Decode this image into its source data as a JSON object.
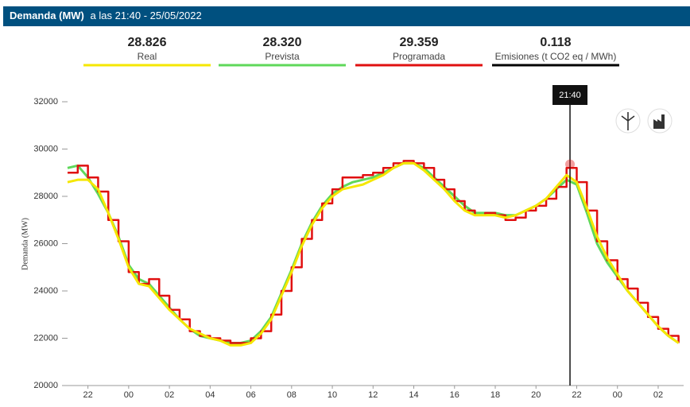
{
  "chart_data": {
    "type": "line",
    "title": "Demanda (MW)",
    "subtitle": "a las 21:40 - 25/05/2022",
    "y_label": "Demanda (MW)",
    "summary": [
      {
        "name": "Real",
        "value": 28826,
        "value_label": "28.826",
        "color": "#f5e700"
      },
      {
        "name": "Prevista",
        "value": 28320,
        "value_label": "28.320",
        "color": "#5fd85a"
      },
      {
        "name": "Programada",
        "value": 29359,
        "value_label": "29.359",
        "color": "#e01010"
      },
      {
        "name": "Emisiones (t CO2 eq / MWh)",
        "value": 0.118,
        "color": "#000000"
      }
    ],
    "cursor": {
      "label": "21:40",
      "x": 45.67
    },
    "x": [
      21,
      21.5,
      22,
      22.5,
      23,
      23.5,
      24,
      24.5,
      25,
      25.5,
      26,
      26.5,
      27,
      27.5,
      28,
      28.5,
      29,
      29.5,
      30,
      30.5,
      31,
      31.5,
      32,
      32.5,
      33,
      33.5,
      34,
      34.5,
      35,
      35.5,
      36,
      36.5,
      37,
      37.5,
      38,
      38.5,
      39,
      39.5,
      40,
      40.5,
      41,
      41.5,
      42,
      42.5,
      43,
      43.5,
      44,
      44.5,
      45,
      45.5,
      46,
      46.5,
      47,
      47.5,
      48,
      48.5,
      49,
      49.5,
      50,
      50.5,
      51
    ],
    "series": [
      {
        "name": "Prevista",
        "color": "#5fd85a",
        "values": [
          29200,
          29300,
          28800,
          28100,
          27300,
          26300,
          25100,
          24500,
          24300,
          23800,
          23300,
          22800,
          22400,
          22100,
          22000,
          21900,
          21800,
          21800,
          21900,
          22300,
          22900,
          23900,
          24900,
          26000,
          26900,
          27600,
          28100,
          28400,
          28600,
          28700,
          28800,
          29000,
          29200,
          29400,
          29400,
          29200,
          28800,
          28400,
          28000,
          27600,
          27300,
          27300,
          27300,
          27200,
          27200,
          27400,
          27600,
          27900,
          28300,
          28700,
          28500,
          27300,
          26000,
          25200,
          24600,
          24000,
          23500,
          23000,
          22500,
          22100,
          21800
        ]
      },
      {
        "name": "Programada",
        "color": "#e01010",
        "step": true,
        "values": [
          29000,
          29300,
          28800,
          28200,
          27000,
          26100,
          24800,
          24300,
          24500,
          23800,
          23200,
          22800,
          22300,
          22100,
          22000,
          21900,
          21800,
          21800,
          22000,
          22300,
          23000,
          24000,
          25000,
          26200,
          27000,
          27700,
          28300,
          28800,
          28800,
          28900,
          29000,
          29200,
          29400,
          29500,
          29400,
          29200,
          28700,
          28300,
          27800,
          27400,
          27200,
          27300,
          27200,
          27000,
          27100,
          27400,
          27600,
          27900,
          28400,
          29200,
          28600,
          27400,
          26100,
          25300,
          24500,
          24100,
          23500,
          22900,
          22400,
          22100,
          21800
        ]
      },
      {
        "name": "Real",
        "color": "#f5e700",
        "values": [
          28600,
          28700,
          28700,
          28300,
          27300,
          26200,
          25000,
          24300,
          24200,
          23700,
          23200,
          22800,
          22400,
          22200,
          22000,
          21900,
          21700,
          21700,
          21800,
          22200,
          22800,
          23800,
          24800,
          25900,
          26800,
          27500,
          28000,
          28300,
          28400,
          28500,
          28700,
          28900,
          29200,
          29400,
          29400,
          29100,
          28700,
          28300,
          27800,
          27400,
          27200,
          27200,
          27200,
          27100,
          27200,
          27400,
          27600,
          27900,
          28400,
          28900,
          28600,
          27500,
          26300,
          25400,
          24700,
          24000,
          23500,
          23000,
          22500,
          22100,
          21800
        ]
      }
    ],
    "xlim": [
      21,
      51.25
    ],
    "xticks": [
      22,
      {
        "value": 24,
        "label": "00"
      },
      {
        "value": 26,
        "label": "02"
      },
      {
        "value": 28,
        "label": "04"
      },
      {
        "value": 30,
        "label": "06"
      },
      {
        "value": 32,
        "label": "08"
      },
      {
        "value": 34,
        "label": "10"
      },
      {
        "value": 36,
        "label": "12"
      },
      {
        "value": 38,
        "label": "14"
      },
      {
        "value": 40,
        "label": "16"
      },
      {
        "value": 42,
        "label": "18"
      },
      {
        "value": 44,
        "label": "20"
      },
      {
        "value": 46,
        "label": "22"
      },
      {
        "value": 48,
        "label": "00"
      },
      {
        "value": 50,
        "label": "02"
      }
    ],
    "ylim": [
      20000,
      32000
    ],
    "yticks": [
      20000,
      22000,
      24000,
      26000,
      28000,
      30000,
      32000
    ]
  }
}
